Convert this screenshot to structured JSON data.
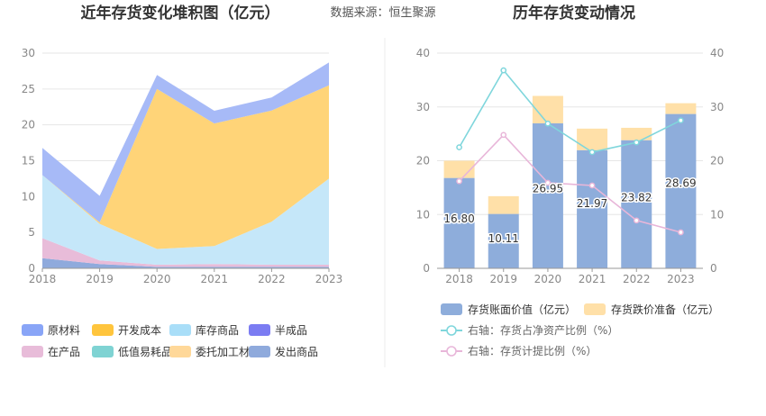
{
  "source_label": "数据来源：恒生聚源",
  "chart_data": [
    {
      "type": "area",
      "title": "近年存货变化堆积图（亿元）",
      "x": [
        "2018",
        "2019",
        "2020",
        "2021",
        "2022",
        "2023"
      ],
      "ylim": [
        0,
        30
      ],
      "yticks": [
        "0",
        "5",
        "10",
        "15",
        "20",
        "25",
        "30"
      ],
      "stacked": true,
      "legend_position": "bottom",
      "series": [
        {
          "name": "发出商品",
          "color": "#8faadc",
          "values": [
            1.4,
            0.6,
            0.2,
            0.2,
            0.2,
            0.2
          ]
        },
        {
          "name": "在产品",
          "color": "#e8bcd9",
          "values": [
            2.8,
            0.5,
            0.3,
            0.4,
            0.3,
            0.3
          ]
        },
        {
          "name": "库存商品",
          "color": "#c5e7f9",
          "values": [
            8.8,
            5.1,
            2.2,
            2.5,
            6.0,
            12.0
          ]
        },
        {
          "name": "开发成本",
          "color": "#ffd478",
          "values": [
            0,
            0.2,
            22.3,
            17.1,
            15.5,
            13.0
          ]
        },
        {
          "name": "原材料",
          "color": "#a7baf7",
          "values": [
            3.8,
            3.7,
            1.95,
            1.77,
            1.82,
            3.19
          ]
        },
        {
          "name": "半成品",
          "color": "#7b7cf2",
          "values": [
            0,
            0,
            0,
            0,
            0,
            0
          ]
        },
        {
          "name": "低值易耗品",
          "color": "#7fd3d3",
          "values": [
            0,
            0,
            0,
            0,
            0,
            0
          ]
        },
        {
          "name": "委托加工材料",
          "color": "#ffd899",
          "values": [
            0,
            0,
            0,
            0,
            0,
            0
          ]
        }
      ],
      "legend": [
        {
          "name": "原材料",
          "color": "#89a5f7"
        },
        {
          "name": "开发成本",
          "color": "#ffc53d"
        },
        {
          "name": "库存商品",
          "color": "#a9def8"
        },
        {
          "name": "半成品",
          "color": "#7b7cf2"
        },
        {
          "name": "在产品",
          "color": "#e8bcd9"
        },
        {
          "name": "低值易耗品",
          "color": "#7fd3d3"
        },
        {
          "name": "委托加工材料",
          "color": "#ffd899"
        },
        {
          "name": "发出商品",
          "color": "#8faadc"
        }
      ]
    },
    {
      "type": "bar",
      "title": "历年存货变动情况",
      "categories": [
        "2018",
        "2019",
        "2020",
        "2021",
        "2022",
        "2023"
      ],
      "ylim": [
        0,
        40
      ],
      "yticks": [
        "0",
        "10",
        "20",
        "30",
        "40"
      ],
      "y2lim": [
        0,
        40
      ],
      "y2ticks": [
        "0",
        "10",
        "20",
        "30",
        "40"
      ],
      "bars": [
        {
          "name": "存货账面价值（亿元）",
          "color": "#8eaddb",
          "values": [
            16.8,
            10.11,
            26.95,
            21.97,
            23.82,
            28.69
          ],
          "labels": [
            "16.80",
            "10.11",
            "26.95",
            "21.97",
            "23.82",
            "28.69"
          ]
        },
        {
          "name": "存货跌价准备（亿元）",
          "color": "#ffe0a8",
          "values": [
            3.2,
            3.3,
            5.1,
            4.0,
            2.3,
            2.0
          ]
        }
      ],
      "lines": [
        {
          "name": "右轴：存货占净资产比例（%）",
          "color": "#7fd6dc",
          "values": [
            22.5,
            36.8,
            26.9,
            21.6,
            23.4,
            27.5
          ]
        },
        {
          "name": "右轴：存货计提比例（%）",
          "color": "#e8b6d9",
          "values": [
            16.2,
            24.8,
            15.9,
            15.4,
            8.9,
            6.7
          ]
        }
      ],
      "legend_position": "bottom"
    }
  ]
}
